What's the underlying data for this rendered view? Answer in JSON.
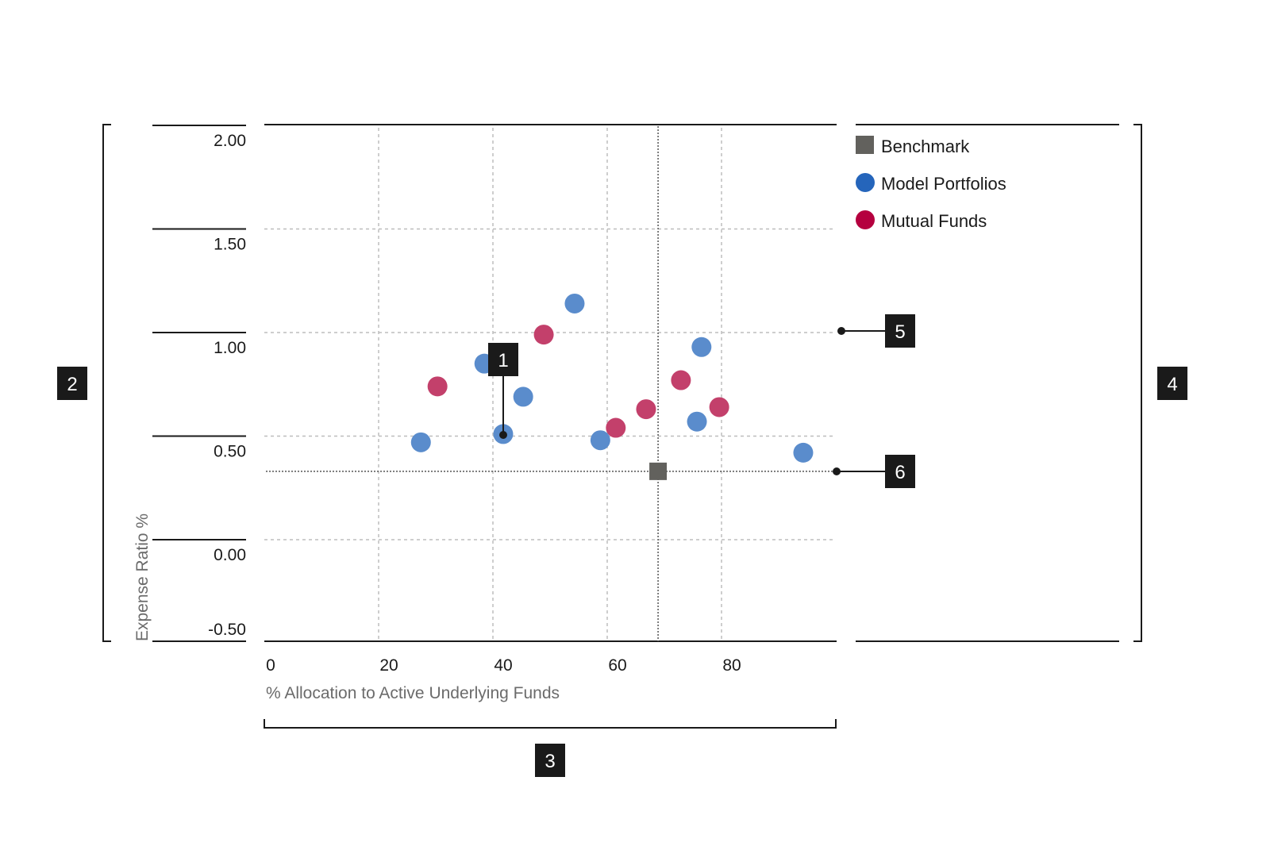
{
  "chart_data": {
    "type": "scatter",
    "xlabel": "% Allocation to Active Underlying Funds",
    "ylabel": "Expense Ratio %",
    "xlim": [
      0,
      100
    ],
    "ylim": [
      -0.5,
      2.0
    ],
    "x_ticks": [
      "0",
      "20",
      "40",
      "60",
      "80"
    ],
    "x_tick_values": [
      0,
      20,
      40,
      60,
      80
    ],
    "y_ticks": [
      "2.00",
      "1.50",
      "1.00",
      "0.50",
      "0.00",
      "-0.50"
    ],
    "y_tick_values": [
      2.0,
      1.5,
      1.0,
      0.5,
      0.0,
      -0.5
    ],
    "grid": true,
    "legend_placement": "right",
    "series": [
      {
        "name": "Benchmark",
        "marker": "square",
        "color": "#62615d",
        "points": [
          [
            68.9,
            0.33
          ]
        ]
      },
      {
        "name": "Model Portfolios",
        "marker": "circle",
        "color": "#2565bb",
        "point_color": "#5a8ccc",
        "points": [
          [
            27.4,
            0.47
          ],
          [
            38.5,
            0.85
          ],
          [
            41.8,
            0.51
          ],
          [
            45.3,
            0.69
          ],
          [
            54.3,
            1.14
          ],
          [
            58.8,
            0.48
          ],
          [
            76.5,
            0.93
          ],
          [
            75.7,
            0.57
          ],
          [
            94.3,
            0.42
          ]
        ]
      },
      {
        "name": "Mutual Funds",
        "marker": "circle",
        "color": "#b5003f",
        "point_color": "#c3406b",
        "points": [
          [
            30.3,
            0.74
          ],
          [
            48.9,
            0.99
          ],
          [
            61.5,
            0.54
          ],
          [
            66.8,
            0.63
          ],
          [
            72.9,
            0.77
          ],
          [
            79.6,
            0.64
          ]
        ]
      }
    ],
    "benchmark_reference_lines": {
      "x": 68.9,
      "y": 0.33
    }
  },
  "callouts": [
    "1",
    "2",
    "3",
    "4",
    "5",
    "6"
  ]
}
